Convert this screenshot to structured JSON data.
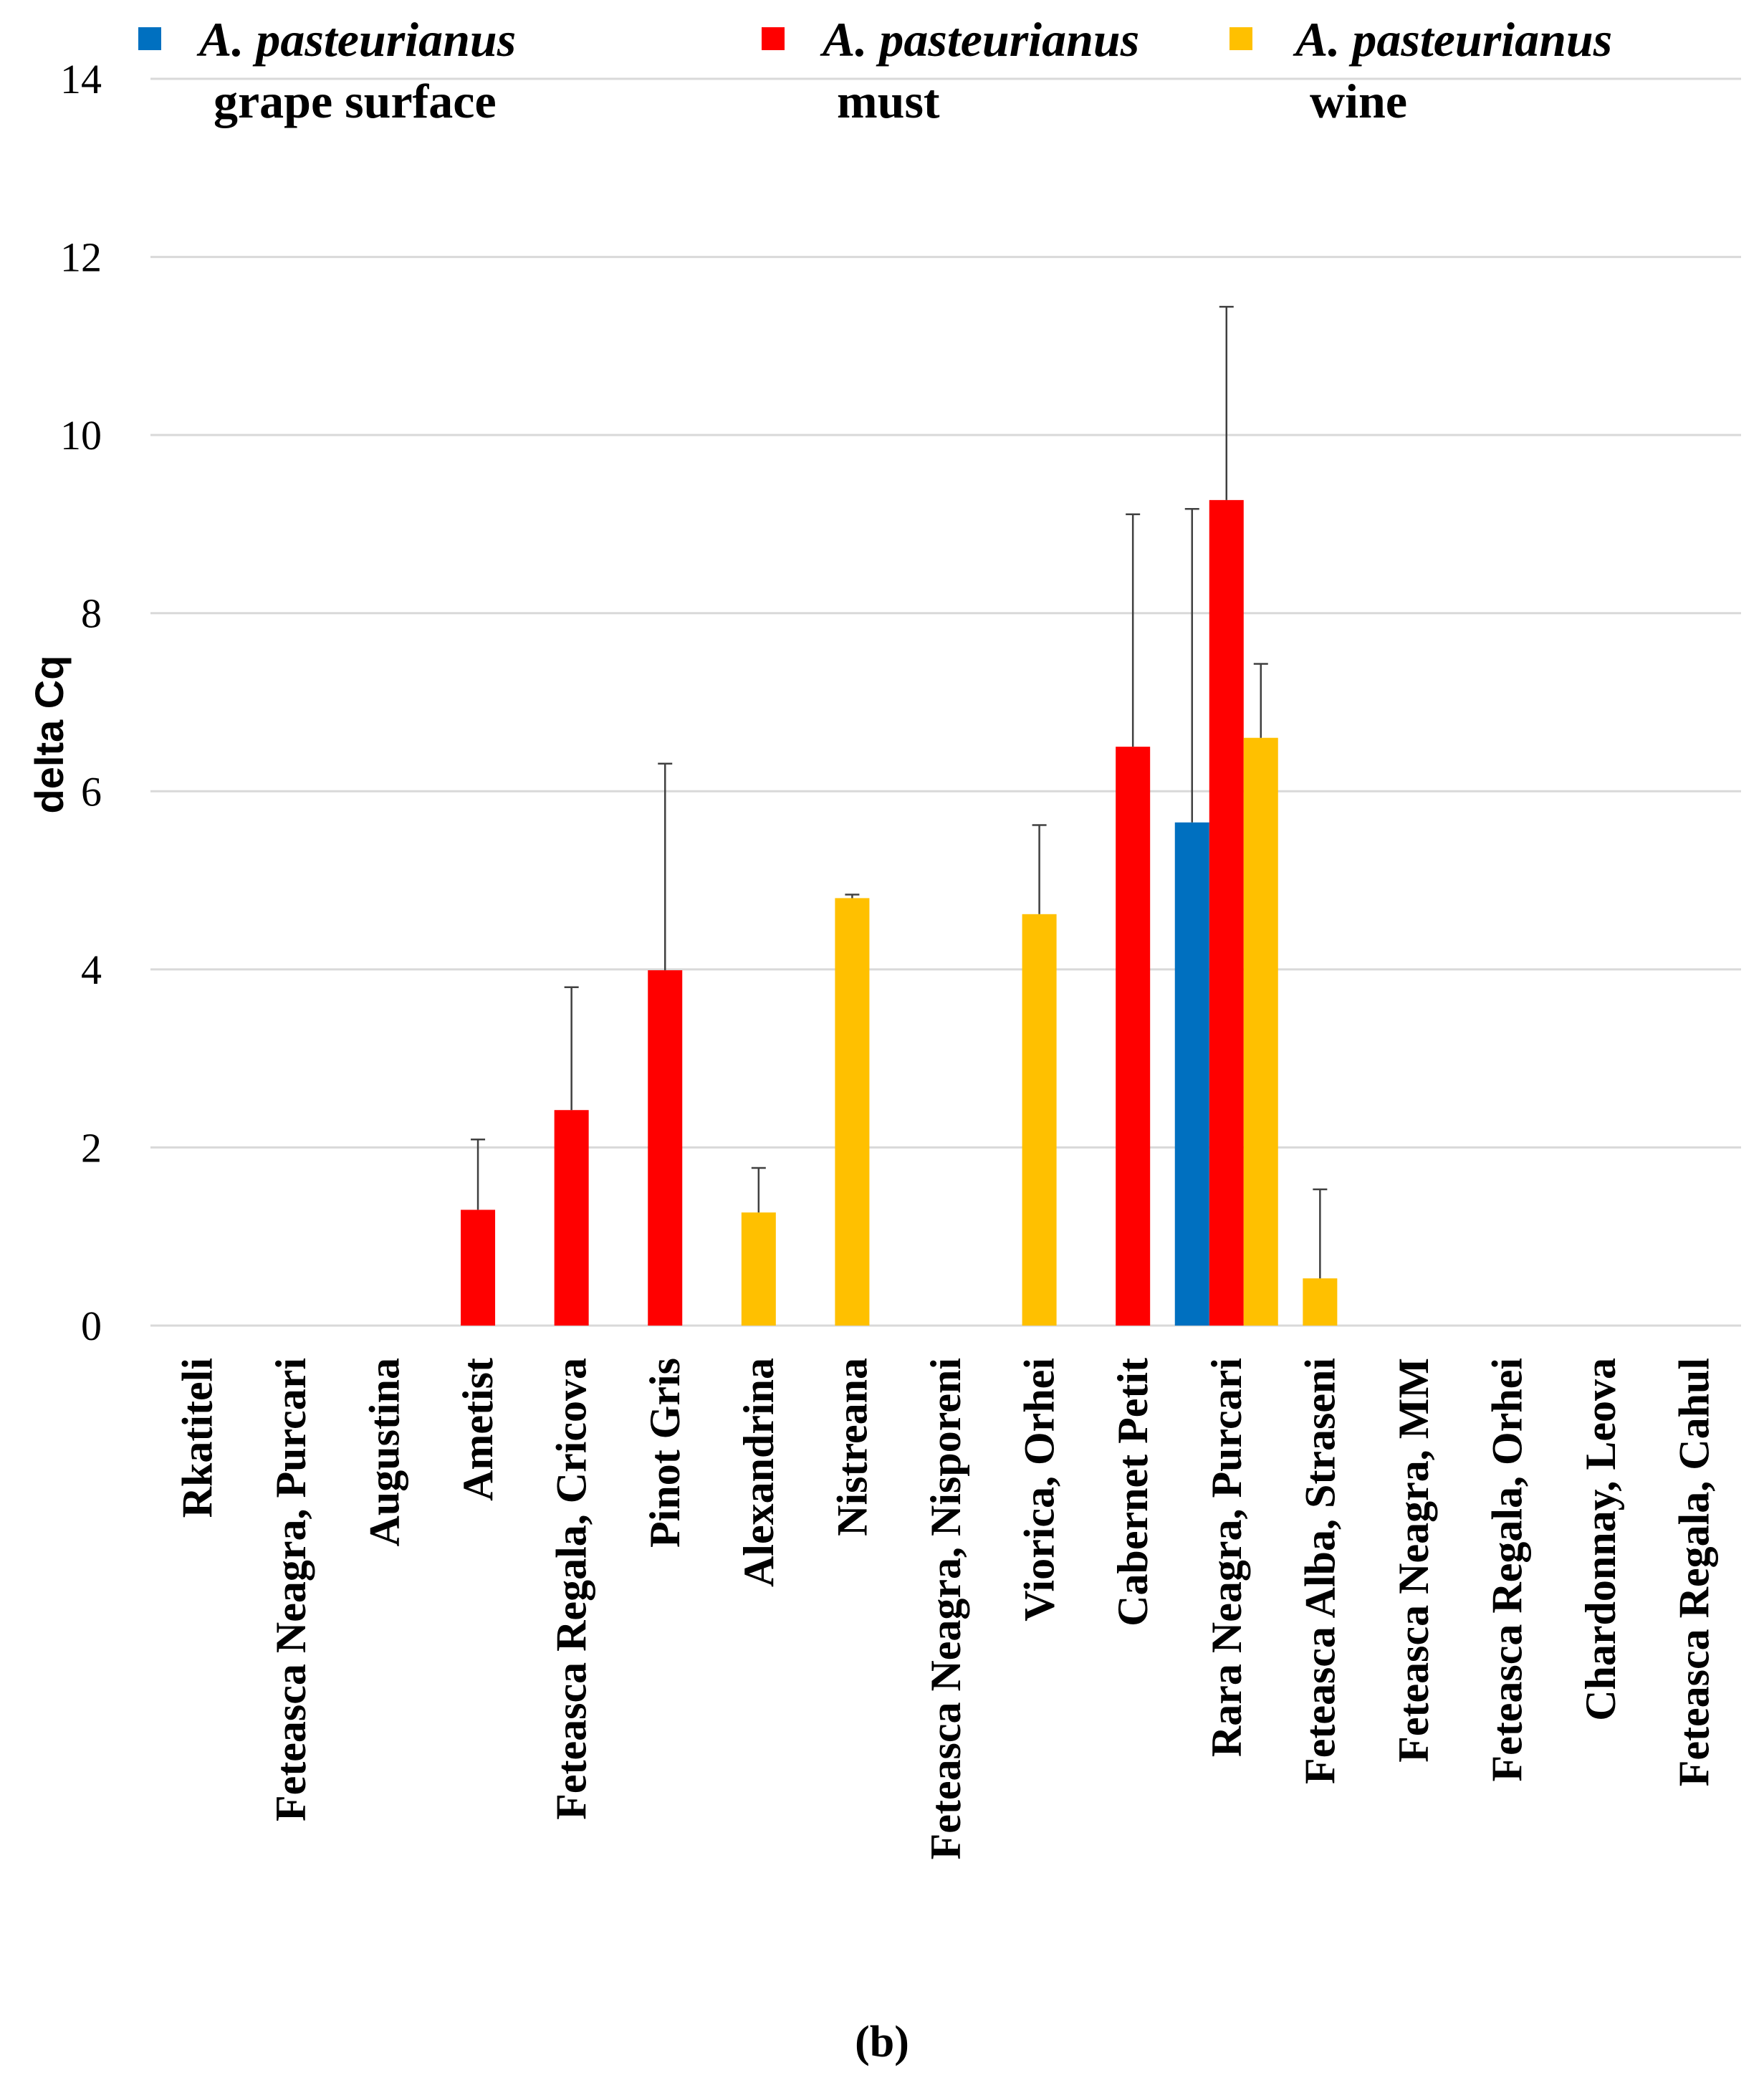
{
  "chart_data": {
    "type": "bar",
    "title": "",
    "xlabel": "",
    "ylabel": "delta Cq",
    "ylim": [
      0,
      14
    ],
    "yticks": [
      0,
      2,
      4,
      6,
      8,
      10,
      12,
      14
    ],
    "grid": true,
    "legend_position": "top",
    "panel_label": "(b)",
    "categories": [
      "Rkatiteli",
      "Feteasca Neagra, Purcari",
      "Augustina",
      "Ametist",
      "Feteasca Regala, Cricova",
      "Pinot Gris",
      "Alexandrina",
      "Nistreana",
      "Feteasca Neagra, Nisporeni",
      "Viorica, Orhei",
      "Cabernet Petit",
      "Rara Neagra, Purcari",
      "Feteasca Alba, Straseni",
      "Feteasca Neagra, MM",
      "Feteasca Regala, Orhei",
      "Chardonnay, Leova",
      "Feteasca Regala, Cahul"
    ],
    "series": [
      {
        "name": "A. pasteurianus grape surface",
        "species": "A. pasteurianus",
        "sample": "grape surface",
        "color": "#0070C0",
        "values": [
          0,
          0,
          0,
          0,
          0,
          0,
          0,
          0,
          0,
          0,
          0,
          5.65,
          0,
          0,
          0,
          0,
          0
        ],
        "errors": [
          0,
          0,
          0,
          0,
          0,
          0,
          0,
          0,
          0,
          0,
          0,
          3.52,
          0,
          0,
          0,
          0,
          0
        ]
      },
      {
        "name": "A. pasteurianus must",
        "species": "A. pasteurianus",
        "sample": "must",
        "color": "#FF0000",
        "values": [
          0,
          0,
          0,
          1.3,
          2.42,
          3.99,
          0,
          0,
          0,
          0,
          6.5,
          9.27,
          0,
          0,
          0,
          0,
          0
        ],
        "errors": [
          0,
          0,
          0,
          0.79,
          1.38,
          2.32,
          0,
          0,
          0,
          0,
          2.61,
          2.17,
          0,
          0,
          0,
          0,
          0
        ]
      },
      {
        "name": "A. pasteurianus wine",
        "species": "A. pasteurianus",
        "sample": "wine",
        "color": "#FFC000",
        "values": [
          0,
          0,
          0,
          0,
          0,
          0,
          1.27,
          4.8,
          0,
          4.62,
          0,
          6.6,
          0.53,
          0,
          0,
          0,
          0
        ],
        "errors": [
          0,
          0,
          0,
          0,
          0,
          0,
          0.5,
          0.04,
          0,
          1.0,
          0,
          0.83,
          1.0,
          0,
          0,
          0,
          0
        ]
      }
    ]
  }
}
